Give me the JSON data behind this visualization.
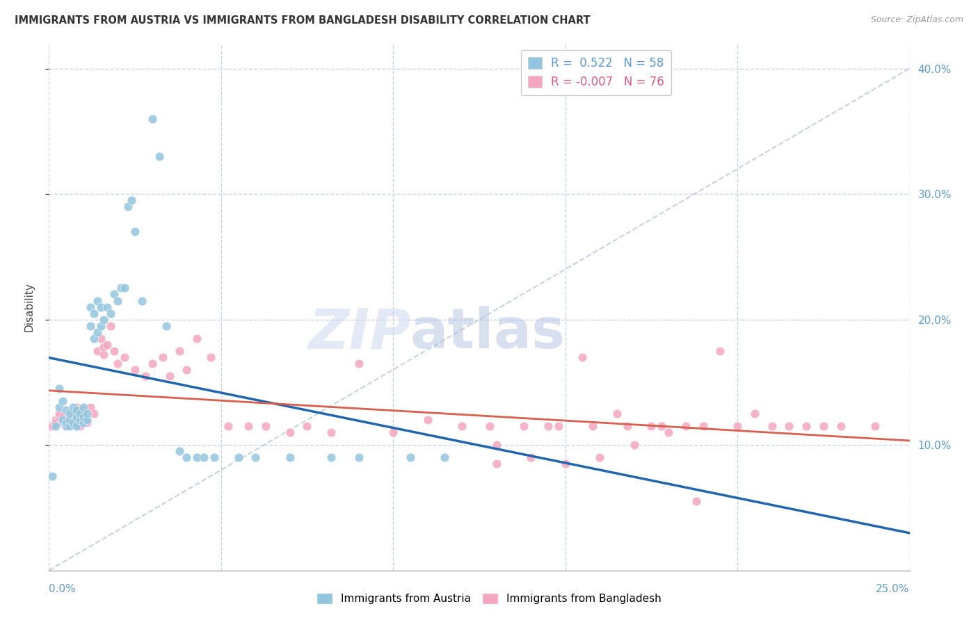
{
  "title": "IMMIGRANTS FROM AUSTRIA VS IMMIGRANTS FROM BANGLADESH DISABILITY CORRELATION CHART",
  "source": "Source: ZipAtlas.com",
  "ylabel": "Disability",
  "xlim": [
    0.0,
    0.25
  ],
  "ylim": [
    0.0,
    0.42
  ],
  "xticks": [
    0.0,
    0.05,
    0.1,
    0.15,
    0.2,
    0.25
  ],
  "yticks_right": [
    0.1,
    0.2,
    0.3,
    0.4
  ],
  "ytick_labels_right": [
    "10.0%",
    "20.0%",
    "30.0%",
    "40.0%"
  ],
  "austria_color": "#92c5de",
  "bangladesh_color": "#f4a6c0",
  "austria_R": 0.522,
  "austria_N": 58,
  "bangladesh_R": -0.007,
  "bangladesh_N": 76,
  "austria_line_color": "#2166ac",
  "bangladesh_line_color": "#d6604d",
  "grid_color": "#c8d4e8",
  "background_color": "#ffffff",
  "austria_x": [
    0.001,
    0.002,
    0.003,
    0.003,
    0.004,
    0.004,
    0.005,
    0.005,
    0.005,
    0.006,
    0.006,
    0.006,
    0.007,
    0.007,
    0.008,
    0.008,
    0.008,
    0.009,
    0.009,
    0.01,
    0.01,
    0.01,
    0.011,
    0.011,
    0.012,
    0.012,
    0.013,
    0.013,
    0.014,
    0.014,
    0.015,
    0.015,
    0.016,
    0.017,
    0.018,
    0.019,
    0.02,
    0.021,
    0.022,
    0.023,
    0.024,
    0.025,
    0.027,
    0.03,
    0.032,
    0.034,
    0.038,
    0.04,
    0.043,
    0.045,
    0.048,
    0.055,
    0.06,
    0.07,
    0.082,
    0.09,
    0.105,
    0.115
  ],
  "austria_y": [
    0.075,
    0.115,
    0.13,
    0.145,
    0.12,
    0.135,
    0.115,
    0.118,
    0.128,
    0.115,
    0.12,
    0.125,
    0.118,
    0.13,
    0.115,
    0.122,
    0.128,
    0.12,
    0.125,
    0.118,
    0.122,
    0.13,
    0.12,
    0.125,
    0.195,
    0.21,
    0.185,
    0.205,
    0.19,
    0.215,
    0.195,
    0.21,
    0.2,
    0.21,
    0.205,
    0.22,
    0.215,
    0.225,
    0.225,
    0.29,
    0.295,
    0.27,
    0.215,
    0.36,
    0.33,
    0.195,
    0.095,
    0.09,
    0.09,
    0.09,
    0.09,
    0.09,
    0.09,
    0.09,
    0.09,
    0.09,
    0.09,
    0.09
  ],
  "bangladesh_x": [
    0.001,
    0.002,
    0.002,
    0.003,
    0.003,
    0.004,
    0.004,
    0.005,
    0.005,
    0.006,
    0.007,
    0.008,
    0.008,
    0.009,
    0.01,
    0.01,
    0.011,
    0.012,
    0.013,
    0.014,
    0.015,
    0.016,
    0.016,
    0.017,
    0.018,
    0.019,
    0.02,
    0.022,
    0.025,
    0.028,
    0.03,
    0.033,
    0.035,
    0.038,
    0.04,
    0.043,
    0.047,
    0.052,
    0.058,
    0.063,
    0.07,
    0.075,
    0.082,
    0.09,
    0.1,
    0.11,
    0.12,
    0.13,
    0.145,
    0.155,
    0.165,
    0.175,
    0.185,
    0.195,
    0.205,
    0.215,
    0.225,
    0.17,
    0.18,
    0.19,
    0.13,
    0.14,
    0.15,
    0.16,
    0.2,
    0.21,
    0.22,
    0.23,
    0.24,
    0.128,
    0.138,
    0.148,
    0.158,
    0.168,
    0.178,
    0.188
  ],
  "bangladesh_y": [
    0.115,
    0.12,
    0.118,
    0.122,
    0.125,
    0.118,
    0.122,
    0.115,
    0.12,
    0.118,
    0.125,
    0.12,
    0.13,
    0.115,
    0.128,
    0.122,
    0.118,
    0.13,
    0.125,
    0.175,
    0.185,
    0.172,
    0.178,
    0.18,
    0.195,
    0.175,
    0.165,
    0.17,
    0.16,
    0.155,
    0.165,
    0.17,
    0.155,
    0.175,
    0.16,
    0.185,
    0.17,
    0.115,
    0.115,
    0.115,
    0.11,
    0.115,
    0.11,
    0.165,
    0.11,
    0.12,
    0.115,
    0.1,
    0.115,
    0.17,
    0.125,
    0.115,
    0.115,
    0.175,
    0.125,
    0.115,
    0.115,
    0.1,
    0.11,
    0.115,
    0.085,
    0.09,
    0.085,
    0.09,
    0.115,
    0.115,
    0.115,
    0.115,
    0.115,
    0.115,
    0.115,
    0.115,
    0.115,
    0.115,
    0.115,
    0.055
  ]
}
